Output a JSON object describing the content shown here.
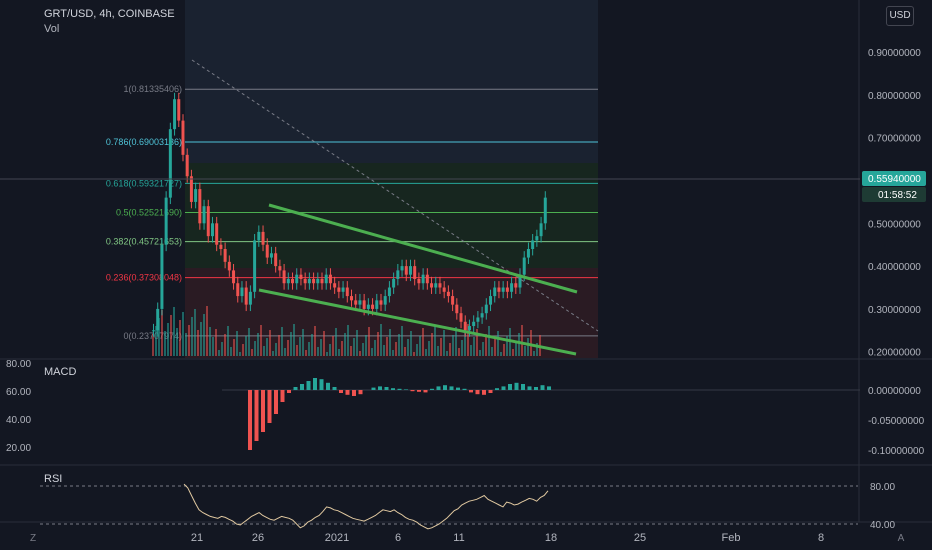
{
  "header": {
    "symbol": "GRT/USD, 4h, COINBASE",
    "indicator": "Vol"
  },
  "currency_button": "USD",
  "corner_left": "Z",
  "corner_right": "A",
  "price_axis": {
    "labels": [
      "0.90000000",
      "0.80000000",
      "0.70000000",
      "0.60000000",
      "0.50000000",
      "0.40000000",
      "0.30000000",
      "0.20000000"
    ],
    "values": [
      0.9,
      0.8,
      0.7,
      0.6,
      0.5,
      0.4,
      0.3,
      0.2
    ],
    "current_price": "0.55940000",
    "countdown": "01:58:52",
    "current_color": "#26a69a"
  },
  "left_axis": {
    "labels": [
      "80.00",
      "60.00",
      "40.00",
      "20.00"
    ]
  },
  "fib_levels": [
    {
      "label": "1(0.81335406)",
      "value": 0.81335406,
      "color": "#787b86"
    },
    {
      "label": "0.786(0.69003136)",
      "value": 0.69003136,
      "color": "#4fc3d7"
    },
    {
      "label": "0.618(0.59321727)",
      "value": 0.59321727,
      "color": "#26a69a"
    },
    {
      "label": "0.5(0.52521690)",
      "value": 0.5252169,
      "color": "#4caf50"
    },
    {
      "label": "0.382(0.45721653)",
      "value": 0.45721653,
      "color": "#81c784"
    },
    {
      "label": "0.236(0.37308048)",
      "value": 0.37308048,
      "color": "#f23645"
    },
    {
      "label": "0(0.23707974)",
      "value": 0.23707974,
      "color": "#787b86"
    }
  ],
  "macd": {
    "title": "MACD",
    "axis_labels": [
      "0.00000000",
      "-0.05000000",
      "-0.10000000"
    ],
    "axis_values": [
      0,
      -0.05,
      -0.1
    ]
  },
  "rsi": {
    "title": "RSI",
    "axis_labels": [
      "80.00",
      "40.00"
    ],
    "axis_values": [
      80,
      40
    ]
  },
  "time_axis": [
    "21",
    "26",
    "2021",
    "6",
    "11",
    "18",
    "25",
    "Feb",
    "8"
  ],
  "colors": {
    "up": "#26a69a",
    "down": "#ef5350",
    "trendline": "#4caf50",
    "rsi": "#e0c8a0",
    "bg": "#131722"
  },
  "chart_data": {
    "type": "candlestick",
    "ylim": [
      0.19,
      0.9
    ],
    "close": [
      0.25,
      0.3,
      0.45,
      0.56,
      0.72,
      0.79,
      0.74,
      0.66,
      0.61,
      0.55,
      0.58,
      0.5,
      0.54,
      0.47,
      0.5,
      0.45,
      0.44,
      0.41,
      0.39,
      0.36,
      0.33,
      0.35,
      0.31,
      0.34,
      0.46,
      0.48,
      0.45,
      0.42,
      0.43,
      0.4,
      0.39,
      0.36,
      0.37,
      0.36,
      0.38,
      0.37,
      0.36,
      0.37,
      0.36,
      0.37,
      0.36,
      0.38,
      0.36,
      0.35,
      0.34,
      0.35,
      0.33,
      0.32,
      0.31,
      0.32,
      0.3,
      0.31,
      0.3,
      0.32,
      0.31,
      0.33,
      0.35,
      0.37,
      0.39,
      0.4,
      0.38,
      0.4,
      0.37,
      0.36,
      0.38,
      0.36,
      0.35,
      0.36,
      0.35,
      0.34,
      0.33,
      0.31,
      0.29,
      0.27,
      0.25,
      0.26,
      0.27,
      0.28,
      0.29,
      0.31,
      0.33,
      0.35,
      0.34,
      0.35,
      0.34,
      0.36,
      0.35,
      0.38,
      0.42,
      0.44,
      0.46,
      0.47,
      0.5,
      0.56
    ],
    "macd_hist": [
      0,
      0,
      0,
      0,
      -0.1,
      -0.085,
      -0.07,
      -0.055,
      -0.04,
      -0.02,
      -0.005,
      0.005,
      0.01,
      0.015,
      0.02,
      0.018,
      0.012,
      0.005,
      -0.005,
      -0.008,
      -0.01,
      -0.007,
      0,
      0.004,
      0.006,
      0.005,
      0.003,
      0.002,
      0.001,
      -0.002,
      -0.003,
      -0.004,
      0.002,
      0.006,
      0.008,
      0.006,
      0.004,
      0.002,
      -0.004,
      -0.007,
      -0.008,
      -0.005,
      0.003,
      0.006,
      0.01,
      0.012,
      0.01,
      0.006,
      0.005,
      0.008,
      0.006
    ],
    "rsi": [
      82,
      78,
      70,
      62,
      55,
      52,
      50,
      48,
      47,
      46,
      48,
      47,
      45,
      43,
      40,
      39,
      42,
      45,
      48,
      50,
      52,
      49,
      47,
      45,
      44,
      46,
      48,
      47,
      46,
      44,
      40,
      36,
      38,
      42,
      44,
      47,
      49,
      53,
      58,
      57,
      55,
      54,
      52,
      50,
      48,
      46,
      45,
      44,
      43,
      45,
      47,
      49,
      52,
      55,
      54,
      53,
      55,
      52,
      50,
      47,
      45,
      44,
      42,
      39,
      37,
      35,
      36,
      38,
      40,
      43,
      46,
      50,
      54,
      56,
      60,
      62,
      64,
      65,
      66,
      68,
      70,
      66,
      64,
      62,
      60,
      58,
      63,
      62,
      60,
      61,
      63,
      65,
      67,
      66,
      64,
      68,
      70,
      75
    ]
  }
}
